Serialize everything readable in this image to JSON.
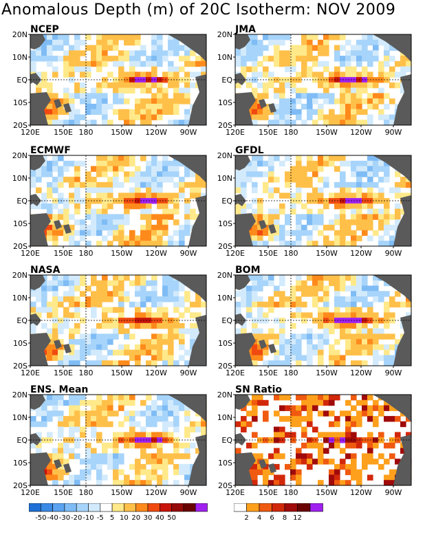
{
  "title": "Anomalous Depth (m) of 20C Isotherm: NOV 2009",
  "axes": {
    "yticks": [
      "20N",
      "10N",
      "EQ",
      "10S",
      "20S"
    ],
    "xticks": [
      "120E",
      "150E",
      "180",
      "150W",
      "120W",
      "90W"
    ]
  },
  "panels": [
    {
      "name": "NCEP",
      "colorbar": "depth",
      "eq_peak_m": 50
    },
    {
      "name": "JMA",
      "colorbar": "depth",
      "eq_peak_m": 50
    },
    {
      "name": "ECMWF",
      "colorbar": "depth",
      "eq_peak_m": 50
    },
    {
      "name": "GFDL",
      "colorbar": "depth",
      "eq_peak_m": 50
    },
    {
      "name": "NASA",
      "colorbar": "depth",
      "eq_peak_m": 40
    },
    {
      "name": "BOM",
      "colorbar": "depth",
      "eq_peak_m": 50
    },
    {
      "name": "ENS. Mean",
      "colorbar": "depth",
      "eq_peak_m": 50
    },
    {
      "name": "SN Ratio",
      "colorbar": "sn",
      "eq_peak_m": 12
    }
  ],
  "colorbars": {
    "depth": {
      "labels": [
        "-50",
        "-40",
        "-30",
        "-20",
        "-10",
        "-5",
        "5",
        "10",
        "20",
        "30",
        "40",
        "50"
      ],
      "colors": [
        "#1e6fd6",
        "#3a8ae6",
        "#5aa3f0",
        "#7fbcf5",
        "#a7d4fa",
        "#d2eafc",
        "#ffffff",
        "#ffe98a",
        "#ffc04a",
        "#ff8a1c",
        "#f04a10",
        "#c8140a",
        "#960a0a",
        "#6a0000",
        "#a020f0"
      ]
    },
    "sn": {
      "labels": [
        "2",
        "4",
        "6",
        "8",
        "12"
      ],
      "colors": [
        "#ffffff",
        "#ffa01c",
        "#f05a10",
        "#d2280a",
        "#a00a0a",
        "#6a0000",
        "#a020f0"
      ]
    }
  },
  "chart_data": {
    "type": "heatmap",
    "title": "Anomalous Depth (m) of 20C Isotherm: NOV 2009",
    "xlabel": "",
    "ylabel": "",
    "x_ticks": [
      "120E",
      "150E",
      "180",
      "150W",
      "120W",
      "90W"
    ],
    "y_ticks": [
      "20N",
      "10N",
      "EQ",
      "10S",
      "20S"
    ],
    "panels": [
      "NCEP",
      "JMA",
      "ECMWF",
      "GFDL",
      "NASA",
      "BOM",
      "ENS. Mean",
      "SN Ratio"
    ],
    "depth_levels_m": [
      -50,
      -40,
      -30,
      -20,
      -10,
      -5,
      5,
      10,
      20,
      30,
      40,
      50
    ],
    "sn_levels": [
      2,
      4,
      6,
      8,
      12
    ]
  }
}
